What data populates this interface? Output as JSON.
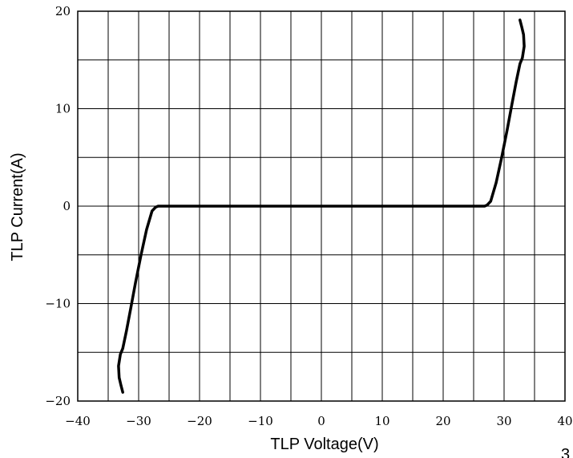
{
  "chart_data": {
    "type": "line",
    "title": "",
    "xlabel": "TLP Voltage(V)",
    "ylabel": "TLP Current(A)",
    "xlim": [
      -40,
      40
    ],
    "ylim": [
      -20,
      20
    ],
    "x_ticks": [
      -40,
      -30,
      -20,
      -10,
      0,
      10,
      20,
      30,
      40
    ],
    "y_ticks": [
      -20,
      -10,
      0,
      10,
      20
    ],
    "x_tick_labels": [
      "−40",
      "−30",
      "−20",
      "−10",
      "0",
      "10",
      "20",
      "30",
      "40"
    ],
    "y_tick_labels": [
      "−20",
      "−10",
      "0",
      "10",
      "20"
    ],
    "grid": true,
    "grid_x_step": 5,
    "grid_y_step": 5,
    "series": [
      {
        "color": "#000000",
        "x": [
          -32.6,
          -32.9,
          -33.2,
          -33.3,
          -33.0,
          -32.6,
          -32.0,
          -31.3,
          -30.5,
          -29.6,
          -28.7,
          -27.8,
          -27.2,
          -26.8,
          -20,
          -10,
          0,
          10,
          20,
          26.8,
          27.2,
          27.8,
          28.7,
          29.6,
          30.5,
          31.3,
          32.0,
          32.6,
          33.0,
          33.3,
          33.2,
          32.9,
          32.6
        ],
        "y": [
          -19.1,
          -18.4,
          -17.6,
          -16.4,
          -15.2,
          -14.6,
          -12.8,
          -10.5,
          -7.8,
          -5.0,
          -2.4,
          -0.5,
          -0.1,
          0,
          0,
          0,
          0,
          0,
          0,
          0,
          0.1,
          0.5,
          2.4,
          5.0,
          7.8,
          10.5,
          12.8,
          14.6,
          15.2,
          16.4,
          17.6,
          18.4,
          19.1
        ]
      }
    ]
  },
  "page_mark": "3"
}
